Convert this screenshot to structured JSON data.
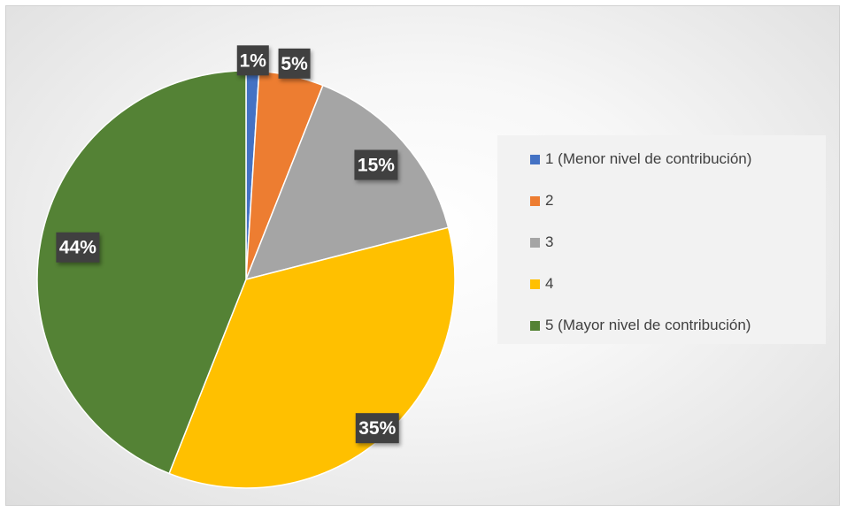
{
  "chart_data": {
    "type": "pie",
    "title": "",
    "categories": [
      "1 (Menor nivel de contribución)",
      "2",
      "3",
      "4",
      "5 (Mayor nivel de contribución)"
    ],
    "values": [
      1,
      5,
      15,
      35,
      44
    ],
    "labels": [
      "1%",
      "5%",
      "15%",
      "35%",
      "44%"
    ],
    "colors": [
      "#4472C4",
      "#ED7D31",
      "#A5A5A5",
      "#FFC000",
      "#548235"
    ],
    "legend_position": "right",
    "start_angle": "12 o'clock",
    "direction": "clockwise"
  }
}
